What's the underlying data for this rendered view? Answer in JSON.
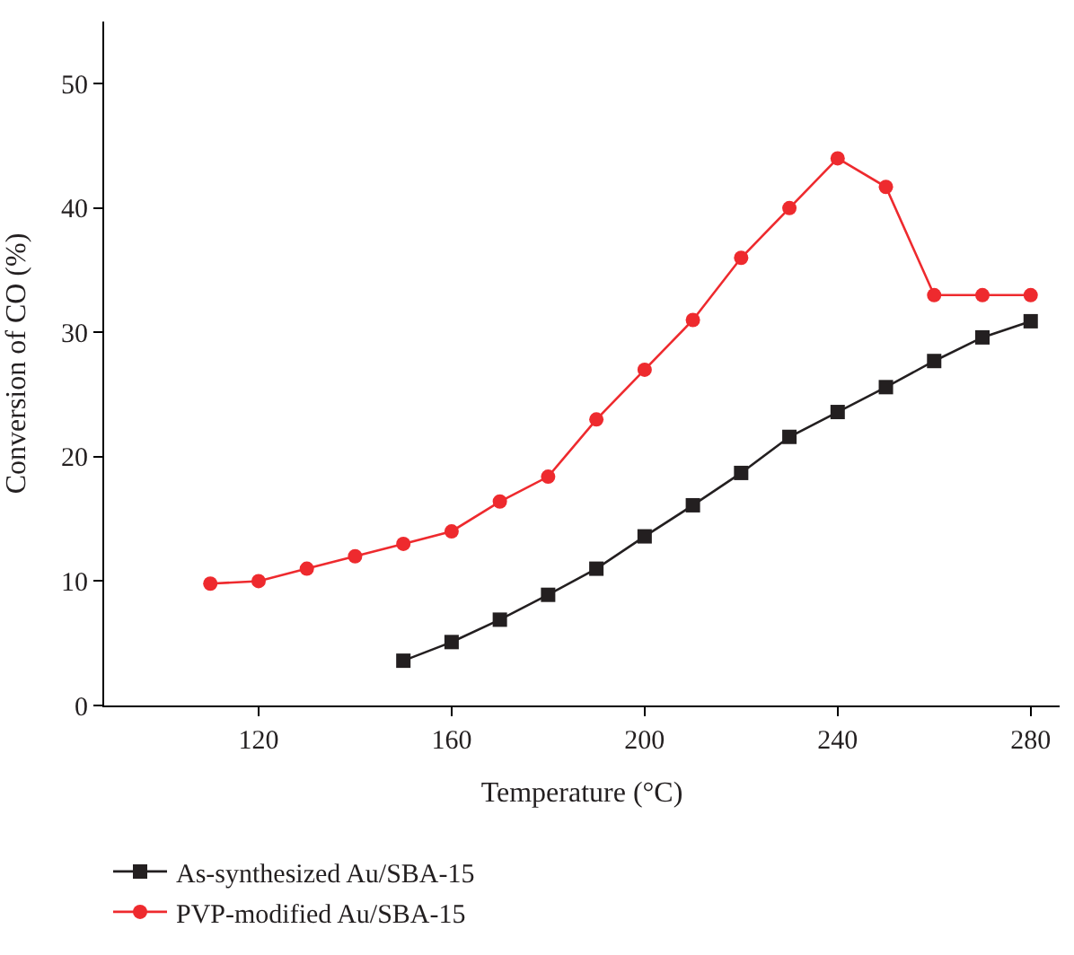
{
  "chart_data": {
    "type": "line",
    "xlabel": "Temperature (°C)",
    "ylabel": "Conversion of CO (%)",
    "xlim": [
      88,
      286
    ],
    "xticks": [
      120,
      160,
      200,
      240,
      280
    ],
    "ylim": [
      0,
      55
    ],
    "yticks": [
      0,
      10,
      20,
      30,
      40,
      50
    ],
    "legend": "bottom left",
    "line_style": "solid",
    "series": [
      {
        "name": "As-synthesized Au/SBA-15",
        "color": "#231f20",
        "marker": "square",
        "x": [
          150,
          160,
          170,
          180,
          190,
          200,
          210,
          220,
          230,
          240,
          250,
          260,
          270,
          280
        ],
        "values": [
          3.6,
          5.1,
          6.9,
          8.9,
          11,
          13.6,
          16.1,
          18.7,
          21.6,
          23.6,
          25.6,
          27.7,
          29.6,
          30.9
        ]
      },
      {
        "name": "PVP-modified Au/SBA-15",
        "color": "#ee2a2e",
        "marker": "circle",
        "x": [
          110,
          120,
          130,
          140,
          150,
          160,
          170,
          180,
          190,
          200,
          210,
          220,
          230,
          240,
          250,
          260,
          270,
          280
        ],
        "values": [
          9.8,
          10,
          11,
          12,
          13,
          14,
          16.4,
          18.4,
          23,
          27,
          31,
          36,
          40,
          44,
          41.7,
          33,
          33,
          33
        ]
      }
    ]
  }
}
